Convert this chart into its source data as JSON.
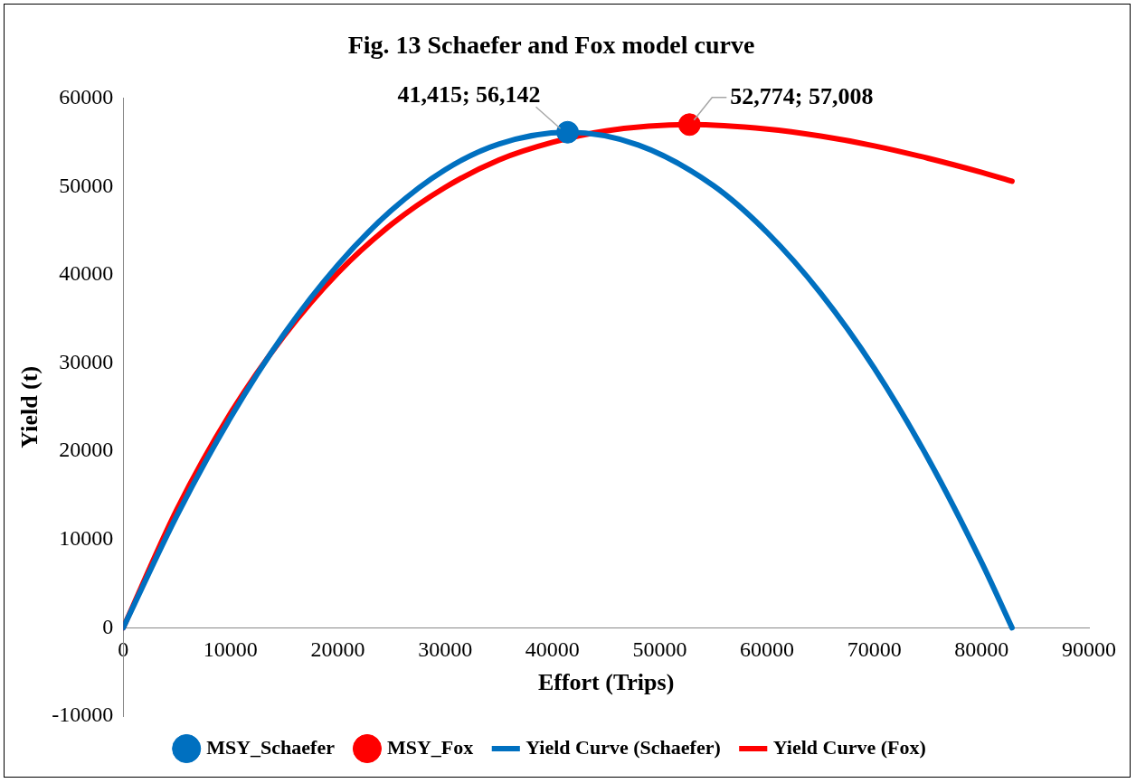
{
  "chart_data": {
    "type": "line",
    "title": "Fig. 13 Schaefer and Fox model curve",
    "xlabel": "Effort (Trips)",
    "ylabel": "Yield (t)",
    "xlim": [
      0,
      90000
    ],
    "xticks": [
      0,
      10000,
      20000,
      30000,
      40000,
      50000,
      60000,
      70000,
      80000,
      90000
    ],
    "ylim": [
      -10000,
      60000
    ],
    "yticks": [
      -10000,
      0,
      10000,
      20000,
      30000,
      40000,
      50000,
      60000
    ],
    "grid": false,
    "legend": "bottom",
    "series": [
      {
        "name": "MSY_Schaefer",
        "type": "scatter",
        "marker": "circle",
        "color": "#0070c0",
        "x": [
          41415
        ],
        "values": [
          56142
        ]
      },
      {
        "name": "MSY_Fox",
        "type": "scatter",
        "marker": "circle",
        "color": "#ff0000",
        "x": [
          52774
        ],
        "values": [
          57008
        ]
      },
      {
        "name": "Yield Curve (Schaefer)",
        "type": "line",
        "marker": "none",
        "line_style": "solid",
        "color": "#0070c0",
        "x": [
          0,
          5000,
          10000,
          15000,
          20000,
          25000,
          30000,
          35000,
          41415,
          48000,
          55000,
          60000,
          65000,
          70000,
          75000,
          80000,
          82830
        ],
        "values": [
          0,
          12700,
          23800,
          33300,
          41100,
          47300,
          51900,
          54800,
          56142,
          54700,
          50100,
          44800,
          37900,
          29400,
          19200,
          7400,
          0
        ]
      },
      {
        "name": "Yield Curve (Fox)",
        "type": "line",
        "marker": "none",
        "line_style": "solid",
        "color": "#ff0000",
        "x": [
          0,
          5000,
          10000,
          15000,
          20000,
          25000,
          30000,
          35000,
          40000,
          45000,
          52774,
          60000,
          65000,
          70000,
          75000,
          80000,
          82830
        ],
        "values": [
          0,
          13400,
          24300,
          33100,
          40200,
          45700,
          49900,
          53000,
          55000,
          56300,
          57008,
          56500,
          55700,
          54600,
          53200,
          51600,
          50600
        ]
      }
    ],
    "annotations": [
      {
        "text": "41,415; 56,142",
        "x": 41415,
        "y": 56142
      },
      {
        "text": "52,774; 57,008",
        "x": 52774,
        "y": 57008
      }
    ]
  }
}
